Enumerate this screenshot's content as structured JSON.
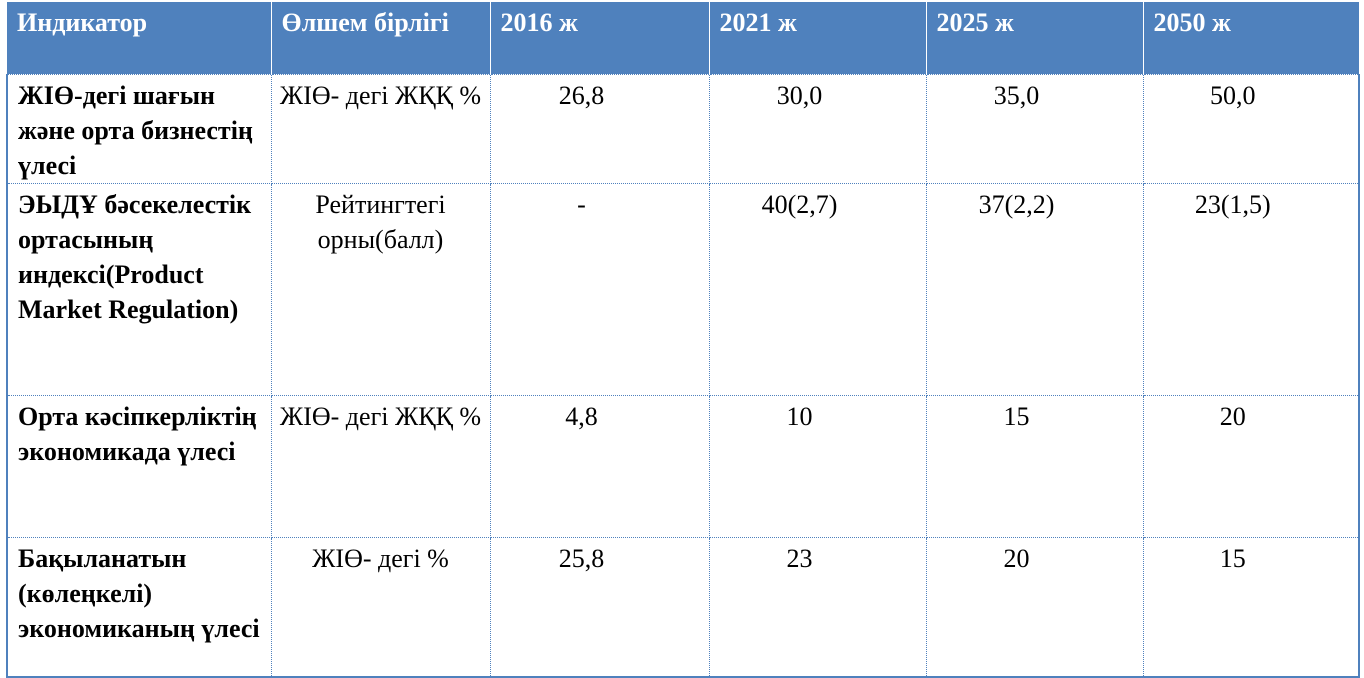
{
  "table": {
    "headers": [
      "Индикатор",
      "Өлшем бірлігі",
      "2016 ж",
      "2021 ж",
      "2025 ж",
      "2050 ж"
    ],
    "rows": [
      {
        "indicator": "ЖІӨ-дегі шағын және орта бизнестің үлесі",
        "unit": "ЖІӨ- дегі ЖҚҚ %",
        "values": [
          "26,8",
          "30,0",
          "35,0",
          "50,0"
        ]
      },
      {
        "indicator": "ЭЫДҰ бәсекелестік ортасының индексі(Product Market Regulation)",
        "unit": "Рейтингтегі орны(балл)",
        "values": [
          "-",
          "40(2,7)",
          "37(2,2)",
          "23(1,5)"
        ]
      },
      {
        "indicator": "Орта кәсіпкерліктің экономикада үлесі",
        "unit": "ЖІӨ- дегі ЖҚҚ %",
        "values": [
          "4,8",
          "10",
          "15",
          "20"
        ]
      },
      {
        "indicator": "Бақыланатын (көлеңкелі) экономиканың үлесі",
        "unit": "ЖІӨ- дегі  %",
        "values": [
          "25,8",
          "23",
          "20",
          "15"
        ]
      }
    ]
  }
}
